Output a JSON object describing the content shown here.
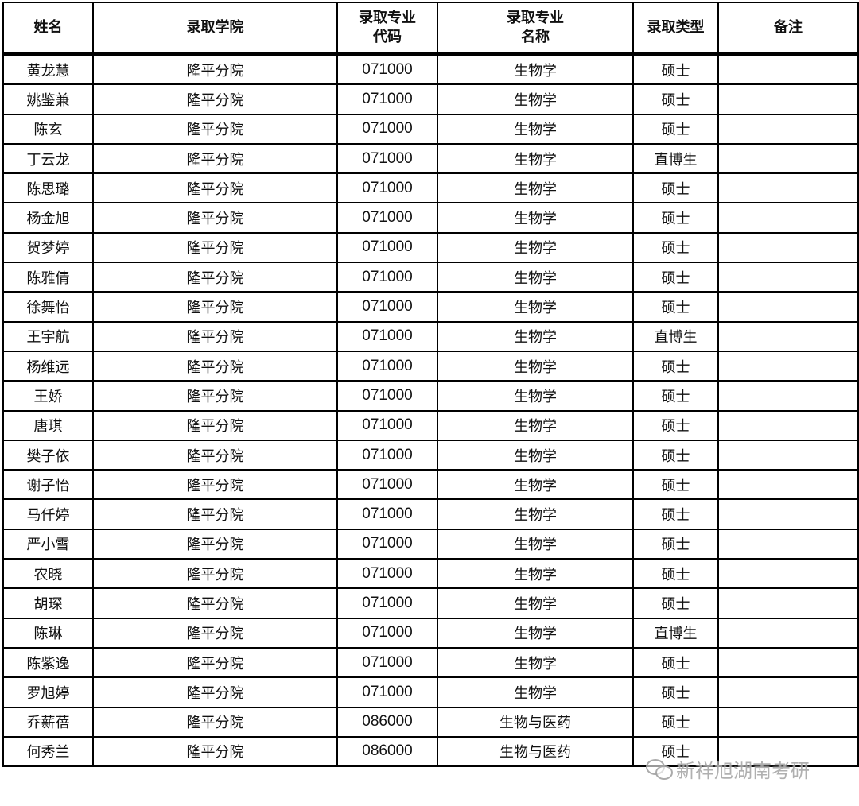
{
  "headers": [
    "姓名",
    "录取学院",
    "录取专业\n代码",
    "录取专业\n名称",
    "录取类型",
    "备注"
  ],
  "rows": [
    [
      "黄龙慧",
      "隆平分院",
      "071000",
      "生物学",
      "硕士",
      ""
    ],
    [
      "姚鉴兼",
      "隆平分院",
      "071000",
      "生物学",
      "硕士",
      ""
    ],
    [
      "陈玄",
      "隆平分院",
      "071000",
      "生物学",
      "硕士",
      ""
    ],
    [
      "丁云龙",
      "隆平分院",
      "071000",
      "生物学",
      "直博生",
      ""
    ],
    [
      "陈思璐",
      "隆平分院",
      "071000",
      "生物学",
      "硕士",
      ""
    ],
    [
      "杨金旭",
      "隆平分院",
      "071000",
      "生物学",
      "硕士",
      ""
    ],
    [
      "贺梦婷",
      "隆平分院",
      "071000",
      "生物学",
      "硕士",
      ""
    ],
    [
      "陈雅倩",
      "隆平分院",
      "071000",
      "生物学",
      "硕士",
      ""
    ],
    [
      "徐舞怡",
      "隆平分院",
      "071000",
      "生物学",
      "硕士",
      ""
    ],
    [
      "王宇航",
      "隆平分院",
      "071000",
      "生物学",
      "直博生",
      ""
    ],
    [
      "杨维远",
      "隆平分院",
      "071000",
      "生物学",
      "硕士",
      ""
    ],
    [
      "王娇",
      "隆平分院",
      "071000",
      "生物学",
      "硕士",
      ""
    ],
    [
      "唐琪",
      "隆平分院",
      "071000",
      "生物学",
      "硕士",
      ""
    ],
    [
      "樊子依",
      "隆平分院",
      "071000",
      "生物学",
      "硕士",
      ""
    ],
    [
      "谢子怡",
      "隆平分院",
      "071000",
      "生物学",
      "硕士",
      ""
    ],
    [
      "马仟婷",
      "隆平分院",
      "071000",
      "生物学",
      "硕士",
      ""
    ],
    [
      "严小雪",
      "隆平分院",
      "071000",
      "生物学",
      "硕士",
      ""
    ],
    [
      "农晓",
      "隆平分院",
      "071000",
      "生物学",
      "硕士",
      ""
    ],
    [
      "胡琛",
      "隆平分院",
      "071000",
      "生物学",
      "硕士",
      ""
    ],
    [
      "陈琳",
      "隆平分院",
      "071000",
      "生物学",
      "直博生",
      ""
    ],
    [
      "陈紫逸",
      "隆平分院",
      "071000",
      "生物学",
      "硕士",
      ""
    ],
    [
      "罗旭婷",
      "隆平分院",
      "071000",
      "生物学",
      "硕士",
      ""
    ],
    [
      "乔薪蓓",
      "隆平分院",
      "086000",
      "生物与医药",
      "硕士",
      ""
    ],
    [
      "何秀兰",
      "隆平分院",
      "086000",
      "生物与医药",
      "硕士",
      ""
    ]
  ],
  "watermark": {
    "text": "新祥旭湖南考研",
    "icon": "wechat-icon"
  }
}
